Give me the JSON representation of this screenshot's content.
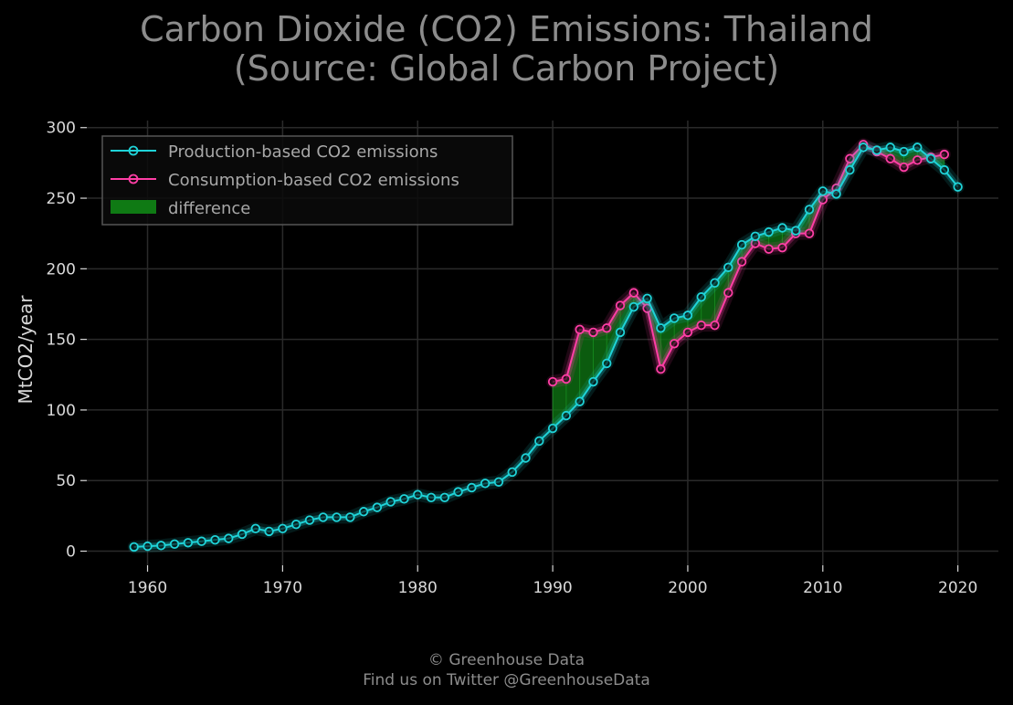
{
  "header": {
    "title_line1": "Carbon Dioxide (CO2) Emissions: Thailand",
    "title_line2": "(Source: Global Carbon Project)"
  },
  "footer": {
    "line1": "© Greenhouse Data",
    "line2": "Find us on Twitter @GreenhouseData"
  },
  "colors": {
    "background": "#000000",
    "production": "#1fd3d8",
    "consumption": "#ff3ea5",
    "difference": "#0f7a14",
    "grid": "#2a2a2a",
    "text": "#d9d9d9",
    "title": "#8c8c8c"
  },
  "chart_data": {
    "type": "line",
    "ylabel": "MtCO2/year",
    "xlabel": "",
    "xlim": [
      1955.5,
      2023
    ],
    "ylim": [
      -10,
      305
    ],
    "x_ticks": [
      1960,
      1970,
      1980,
      1990,
      2000,
      2010,
      2020
    ],
    "y_ticks": [
      0,
      50,
      100,
      150,
      200,
      250,
      300
    ],
    "grid": true,
    "legend_position": "top-left",
    "legend": [
      "Production-based CO2 emissions",
      "Consumption-based CO2 emissions",
      "difference"
    ],
    "series": [
      {
        "name": "Production-based CO2 emissions",
        "x": [
          1959,
          1960,
          1961,
          1962,
          1963,
          1964,
          1965,
          1966,
          1967,
          1968,
          1969,
          1970,
          1971,
          1972,
          1973,
          1974,
          1975,
          1976,
          1977,
          1978,
          1979,
          1980,
          1981,
          1982,
          1983,
          1984,
          1985,
          1986,
          1987,
          1988,
          1989,
          1990,
          1991,
          1992,
          1993,
          1994,
          1995,
          1996,
          1997,
          1998,
          1999,
          2000,
          2001,
          2002,
          2003,
          2004,
          2005,
          2006,
          2007,
          2008,
          2009,
          2010,
          2011,
          2012,
          2013,
          2014,
          2015,
          2016,
          2017,
          2018,
          2019,
          2020
        ],
        "values": [
          3,
          3.5,
          4,
          5,
          6,
          7,
          8,
          9,
          12,
          16,
          14,
          16,
          19,
          22,
          24,
          24,
          24,
          28,
          31,
          35,
          37,
          40,
          38,
          38,
          42,
          45,
          48,
          49,
          56,
          66,
          78,
          87,
          96,
          106,
          120,
          133,
          155,
          173,
          179,
          158,
          165,
          167,
          180,
          190,
          201,
          217,
          223,
          226,
          229,
          227,
          242,
          255,
          253,
          270,
          286,
          284,
          286,
          283,
          286,
          278,
          270,
          258
        ]
      },
      {
        "name": "Consumption-based CO2 emissions",
        "x": [
          1990,
          1991,
          1992,
          1993,
          1994,
          1995,
          1996,
          1997,
          1998,
          1999,
          2000,
          2001,
          2002,
          2003,
          2004,
          2005,
          2006,
          2007,
          2008,
          2009,
          2010,
          2011,
          2012,
          2013,
          2014,
          2015,
          2016,
          2017,
          2018,
          2019
        ],
        "values": [
          120,
          122,
          157,
          155,
          158,
          174,
          183,
          172,
          129,
          147,
          155,
          160,
          160,
          183,
          205,
          218,
          214,
          215,
          225,
          225,
          249,
          257,
          278,
          288,
          283,
          278,
          272,
          277,
          279,
          281
        ]
      }
    ]
  }
}
